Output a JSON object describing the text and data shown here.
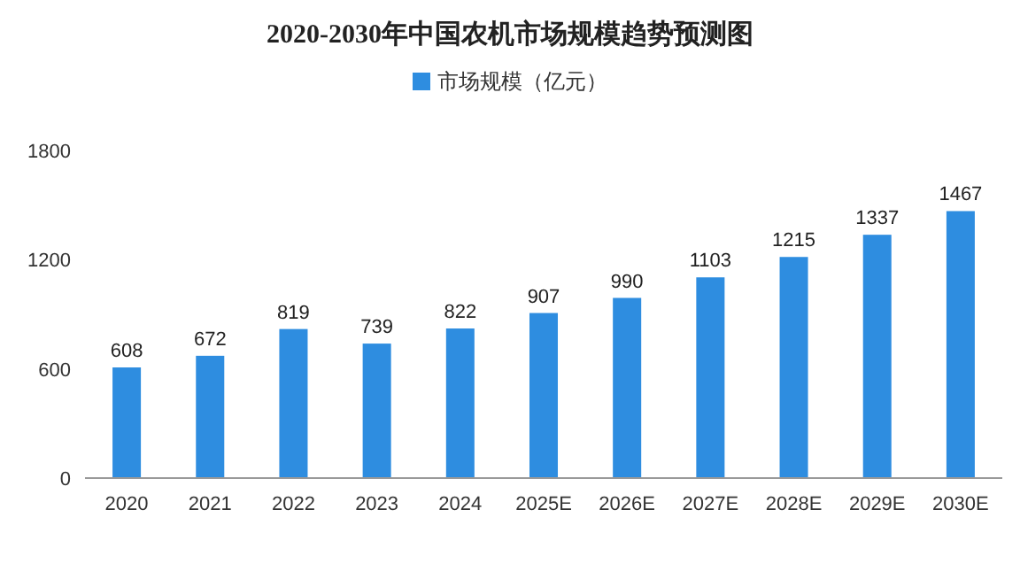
{
  "chart_data": {
    "type": "bar",
    "title": "2020-2030年中国农机市场规模趋势预测图",
    "categories": [
      "2020",
      "2021",
      "2022",
      "2023",
      "2024",
      "2025E",
      "2026E",
      "2027E",
      "2028E",
      "2029E",
      "2030E"
    ],
    "series": [
      {
        "name": "市场规模（亿元）",
        "color": "#2e8de0",
        "values": [
          608,
          672,
          819,
          739,
          822,
          907,
          990,
          1103,
          1215,
          1337,
          1467
        ]
      }
    ],
    "ylim": [
      0,
      1800
    ],
    "yticks": [
      0,
      600,
      1200,
      1800
    ],
    "data_labels": true,
    "legend": "top"
  }
}
